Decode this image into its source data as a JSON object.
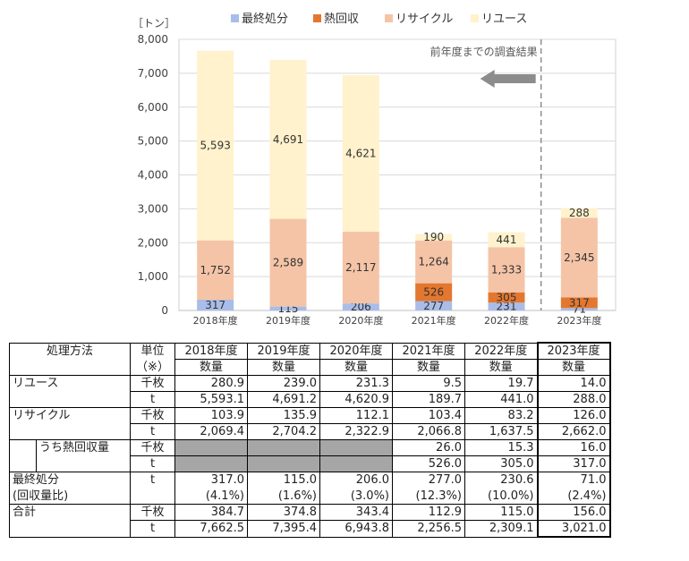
{
  "chart_data": {
    "type": "bar",
    "stacked": true,
    "unit_label": "［トン］",
    "categories": [
      "2018年度",
      "2019年度",
      "2020年度",
      "2021年度",
      "2022年度",
      "2023年度"
    ],
    "ylim": [
      0,
      8000
    ],
    "yticks": [
      "0",
      "1,000",
      "2,000",
      "3,000",
      "4,000",
      "5,000",
      "6,000",
      "7,000",
      "8,000"
    ],
    "grid": true,
    "legend_position": "top",
    "series": [
      {
        "name": "最終処分",
        "color": "#a9bde8",
        "values": [
          317,
          115,
          206,
          277,
          231,
          71
        ],
        "labels": [
          "317",
          "115",
          "206",
          "277",
          "231",
          "71"
        ]
      },
      {
        "name": "熱回収",
        "color": "#e4772f",
        "values": [
          0,
          0,
          0,
          526,
          305,
          317
        ],
        "labels": [
          "",
          "",
          "",
          "526",
          "305",
          "317"
        ]
      },
      {
        "name": "リサイクル",
        "color": "#f5c4a7",
        "values": [
          1752,
          2589,
          2117,
          1264,
          1333,
          2345
        ],
        "labels": [
          "1,752",
          "2,589",
          "2,117",
          "1,264",
          "1,333",
          "2,345"
        ]
      },
      {
        "name": "リユース",
        "color": "#fff2cc",
        "values": [
          5593,
          4691,
          4621,
          190,
          441,
          288
        ],
        "labels": [
          "5,593",
          "4,691",
          "4,621",
          "190",
          "441",
          "288"
        ]
      }
    ],
    "annotation": "前年度までの調査結果"
  },
  "table": {
    "headers": {
      "method": "処理方法",
      "unit": "単位",
      "unit_note": "（※）",
      "years": [
        "2018年度",
        "2019年度",
        "2020年度",
        "2021年度",
        "2022年度",
        "2023年度"
      ],
      "qty": "数量"
    },
    "rows": [
      {
        "label": "リユース",
        "unit": "千枚",
        "values": [
          "280.9",
          "239.0",
          "231.3",
          "9.5",
          "19.7",
          "14.0"
        ]
      },
      {
        "label": "",
        "unit": "t",
        "values": [
          "5,593.1",
          "4,691.2",
          "4,620.9",
          "189.7",
          "441.0",
          "288.0"
        ]
      },
      {
        "label": "リサイクル",
        "unit": "千枚",
        "values": [
          "103.9",
          "135.9",
          "112.1",
          "103.4",
          "83.2",
          "126.0"
        ]
      },
      {
        "label": "",
        "unit": "t",
        "values": [
          "2,069.4",
          "2,704.2",
          "2,322.9",
          "2,066.8",
          "1,637.5",
          "2,662.0"
        ]
      },
      {
        "label": "うち熱回収量",
        "unit": "千枚",
        "values": [
          "",
          "",
          "",
          "26.0",
          "15.3",
          "16.0"
        ]
      },
      {
        "label": "",
        "unit": "t",
        "values": [
          "",
          "",
          "",
          "526.0",
          "305.0",
          "317.0"
        ]
      },
      {
        "label": "最終処分",
        "unit": "t",
        "values": [
          "317.0",
          "115.0",
          "206.0",
          "277.0",
          "230.6",
          "71.0"
        ]
      },
      {
        "label": "(回収量比)",
        "unit": "",
        "values": [
          "(4.1%)",
          "(1.6%)",
          "(3.0%)",
          "(12.3%)",
          "(10.0%)",
          "(2.4%)"
        ]
      },
      {
        "label": "合計",
        "unit": "千枚",
        "values": [
          "384.7",
          "374.8",
          "343.4",
          "112.9",
          "115.0",
          "156.0"
        ]
      },
      {
        "label": "",
        "unit": "t",
        "values": [
          "7,662.5",
          "7,395.4",
          "6,943.8",
          "2,256.5",
          "2,309.1",
          "3,021.0"
        ]
      }
    ]
  }
}
